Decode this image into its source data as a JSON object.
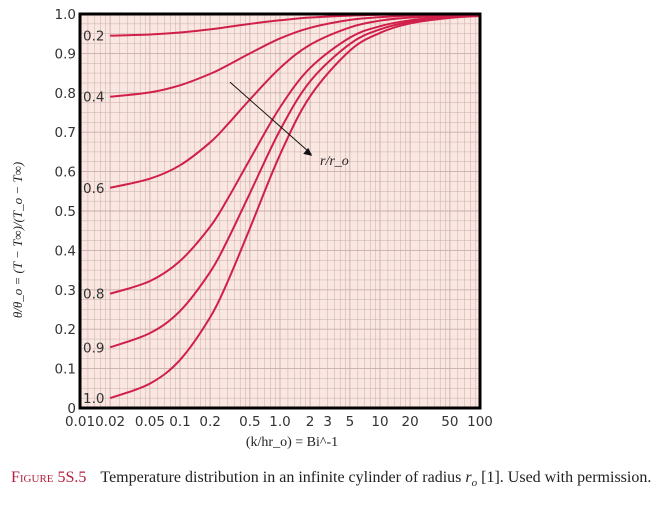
{
  "chart_data": {
    "type": "line",
    "title": "",
    "xlabel": "(k/hr_o) = Bi^-1",
    "ylabel": "θ/θ_o = (T − T∞)/(T_o − T∞)",
    "xscale": "log",
    "xlim": [
      0.01,
      100
    ],
    "ylim": [
      0,
      1.0
    ],
    "grid": true,
    "xticks": [
      "0.01",
      "0.02",
      "0.05",
      "0.1",
      "0.2",
      "0.5",
      "1.0",
      "2",
      "3",
      "5",
      "10",
      "20",
      "50",
      "100"
    ],
    "yticks": [
      "0",
      "0.1",
      "0.2",
      "0.3",
      "0.4",
      "0.5",
      "0.6",
      "0.7",
      "0.8",
      "0.9",
      "1.0"
    ],
    "x": [
      0.02,
      0.05,
      0.1,
      0.2,
      0.3,
      0.5,
      1,
      2,
      5,
      10,
      20,
      50,
      100
    ],
    "series": [
      {
        "name": "0.2",
        "values": [
          0.945,
          0.948,
          0.953,
          0.961,
          0.967,
          0.975,
          0.984,
          0.991,
          0.996,
          0.998,
          0.999,
          1.0,
          1.0
        ]
      },
      {
        "name": "0.4",
        "values": [
          0.79,
          0.801,
          0.819,
          0.848,
          0.87,
          0.9,
          0.938,
          0.965,
          0.985,
          0.992,
          0.996,
          0.998,
          0.999
        ]
      },
      {
        "name": "0.6",
        "values": [
          0.559,
          0.582,
          0.616,
          0.674,
          0.72,
          0.783,
          0.863,
          0.922,
          0.966,
          0.983,
          0.991,
          0.996,
          0.998
        ]
      },
      {
        "name": "0.8",
        "values": [
          0.29,
          0.322,
          0.373,
          0.46,
          0.531,
          0.631,
          0.763,
          0.863,
          0.94,
          0.969,
          0.984,
          0.994,
          0.997
        ]
      },
      {
        "name": "0.9",
        "values": [
          0.154,
          0.19,
          0.246,
          0.345,
          0.427,
          0.545,
          0.705,
          0.829,
          0.924,
          0.961,
          0.98,
          0.992,
          0.996
        ]
      },
      {
        "name": "1.0",
        "values": [
          0.025,
          0.062,
          0.122,
          0.23,
          0.321,
          0.456,
          0.643,
          0.791,
          0.907,
          0.952,
          0.976,
          0.99,
          0.995
        ]
      }
    ],
    "annotation": "r/r_o",
    "colors": {
      "curve": "#d0204a",
      "background": "#fbe7e1",
      "grid": "#c8aeab",
      "frame": "#000000"
    }
  },
  "caption": {
    "figure_number": "Figure 5S.5",
    "text_before": "Temperature distribution in an infinite cylinder of radius ",
    "symbol": "r",
    "symbol_sub": "o",
    "text_after": " [1]. Used with permission."
  }
}
